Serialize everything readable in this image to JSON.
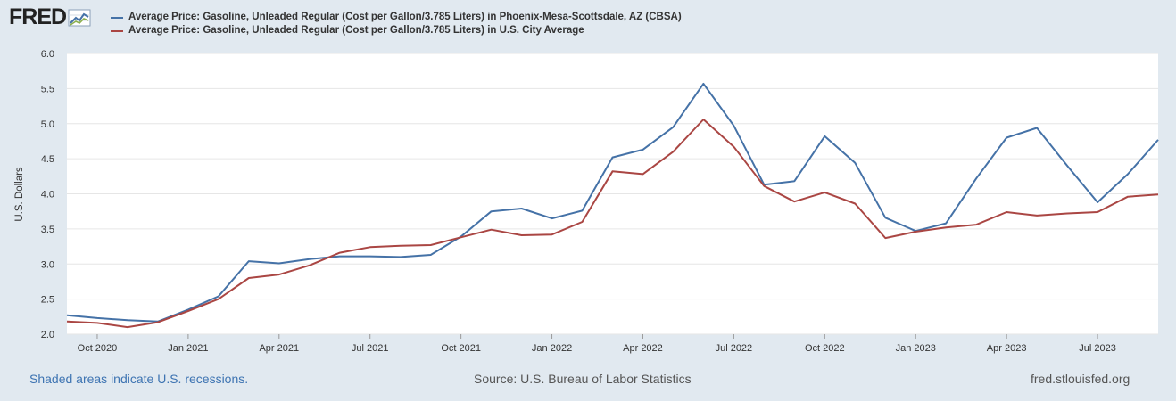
{
  "brand": {
    "logo_text": "FRED"
  },
  "footer": {
    "note": "Shaded areas indicate U.S. recessions.",
    "source": "Source: U.S. Bureau of Labor Statistics",
    "url": "fred.stlouisfed.org"
  },
  "colors": {
    "series_1": "#4572a7",
    "series_2": "#aa4643",
    "background": "#e1e9f0",
    "plot_background": "#ffffff",
    "grid": "#e6e6e6"
  },
  "chart_data": {
    "type": "line",
    "title": "",
    "xlabel": "",
    "ylabel": "U.S. Dollars",
    "ylim": [
      2.0,
      6.0
    ],
    "yticks": [
      "2.0",
      "2.5",
      "3.0",
      "3.5",
      "4.0",
      "4.5",
      "5.0",
      "5.5",
      "6.0"
    ],
    "grid": true,
    "legend_position": "top",
    "x": [
      "2020-09",
      "2020-10",
      "2020-11",
      "2020-12",
      "2021-01",
      "2021-02",
      "2021-03",
      "2021-04",
      "2021-05",
      "2021-06",
      "2021-07",
      "2021-08",
      "2021-09",
      "2021-10",
      "2021-11",
      "2021-12",
      "2022-01",
      "2022-02",
      "2022-03",
      "2022-04",
      "2022-05",
      "2022-06",
      "2022-07",
      "2022-08",
      "2022-09",
      "2022-10",
      "2022-11",
      "2022-12",
      "2023-01",
      "2023-02",
      "2023-03",
      "2023-04",
      "2023-05",
      "2023-06",
      "2023-07",
      "2023-08",
      "2023-09"
    ],
    "xtick_labels": [
      {
        "index": 1,
        "label": "Oct 2020"
      },
      {
        "index": 4,
        "label": "Jan 2021"
      },
      {
        "index": 7,
        "label": "Apr 2021"
      },
      {
        "index": 10,
        "label": "Jul 2021"
      },
      {
        "index": 13,
        "label": "Oct 2021"
      },
      {
        "index": 16,
        "label": "Jan 2022"
      },
      {
        "index": 19,
        "label": "Apr 2022"
      },
      {
        "index": 22,
        "label": "Jul 2022"
      },
      {
        "index": 25,
        "label": "Oct 2022"
      },
      {
        "index": 28,
        "label": "Jan 2023"
      },
      {
        "index": 31,
        "label": "Apr 2023"
      },
      {
        "index": 34,
        "label": "Jul 2023"
      }
    ],
    "series": [
      {
        "name": "Average Price: Gasoline, Unleaded Regular (Cost per Gallon/3.785 Liters) in Phoenix-Mesa-Scottsdale, AZ (CBSA)",
        "color": "#4572a7",
        "values": [
          2.27,
          2.23,
          2.2,
          2.18,
          2.35,
          2.54,
          3.04,
          3.01,
          3.07,
          3.11,
          3.11,
          3.1,
          3.13,
          3.39,
          3.75,
          3.79,
          3.65,
          3.76,
          4.52,
          4.63,
          4.95,
          5.57,
          4.97,
          4.13,
          4.18,
          4.82,
          4.44,
          3.66,
          3.47,
          3.58,
          4.22,
          4.8,
          4.94,
          4.4,
          3.88,
          4.28,
          4.77
        ]
      },
      {
        "name": "Average Price: Gasoline, Unleaded Regular (Cost per Gallon/3.785 Liters) in U.S. City Average",
        "color": "#aa4643",
        "values": [
          2.18,
          2.16,
          2.1,
          2.17,
          2.33,
          2.5,
          2.8,
          2.85,
          2.98,
          3.16,
          3.24,
          3.26,
          3.27,
          3.38,
          3.49,
          3.41,
          3.42,
          3.6,
          4.32,
          4.28,
          4.6,
          5.06,
          4.67,
          4.11,
          3.89,
          4.02,
          3.86,
          3.37,
          3.46,
          3.52,
          3.56,
          3.74,
          3.69,
          3.72,
          3.74,
          3.96,
          3.99
        ]
      }
    ]
  }
}
